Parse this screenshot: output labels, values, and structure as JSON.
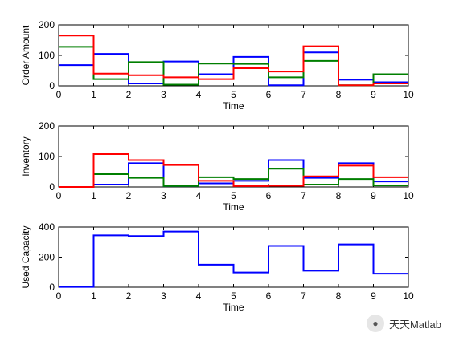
{
  "chart_data": [
    {
      "type": "line",
      "ylabel": "Order Amount",
      "xlabel": "Time",
      "xlim": [
        0,
        10
      ],
      "ylim": [
        0,
        200
      ],
      "xticks": [
        0,
        1,
        2,
        3,
        4,
        5,
        6,
        7,
        8,
        9,
        10
      ],
      "yticks": [
        0,
        100,
        200
      ],
      "step": true,
      "grid": false,
      "series": [
        {
          "color": "#0000ff",
          "values": [
            68,
            105,
            8,
            80,
            38,
            95,
            2,
            110,
            20,
            12
          ]
        },
        {
          "color": "#007f00",
          "values": [
            128,
            22,
            78,
            4,
            73,
            72,
            28,
            82,
            2,
            38
          ]
        },
        {
          "color": "#ff0000",
          "values": [
            165,
            40,
            35,
            28,
            22,
            58,
            47,
            130,
            2,
            8
          ]
        }
      ]
    },
    {
      "type": "line",
      "ylabel": "Inventory",
      "xlabel": "Time",
      "xlim": [
        0,
        10
      ],
      "ylim": [
        0,
        200
      ],
      "xticks": [
        0,
        1,
        2,
        3,
        4,
        5,
        6,
        7,
        8,
        9,
        10
      ],
      "yticks": [
        0,
        100,
        200
      ],
      "step": true,
      "grid": false,
      "series": [
        {
          "color": "#0000ff",
          "values": [
            0,
            8,
            78,
            3,
            12,
            20,
            88,
            30,
            78,
            18
          ]
        },
        {
          "color": "#007f00",
          "values": [
            0,
            42,
            30,
            3,
            32,
            26,
            60,
            8,
            26,
            5
          ]
        },
        {
          "color": "#ff0000",
          "values": [
            0,
            108,
            88,
            72,
            20,
            3,
            4,
            35,
            70,
            32
          ]
        }
      ]
    },
    {
      "type": "line",
      "ylabel": "Used Capacity",
      "xlabel": "Time",
      "xlim": [
        0,
        10
      ],
      "ylim": [
        0,
        400
      ],
      "xticks": [
        0,
        1,
        2,
        3,
        4,
        5,
        6,
        7,
        8,
        9,
        10
      ],
      "yticks": [
        0,
        200,
        400
      ],
      "step": true,
      "grid": false,
      "series": [
        {
          "color": "#0000ff",
          "values": [
            2,
            345,
            340,
            370,
            150,
            98,
            275,
            110,
            285,
            90
          ]
        }
      ]
    }
  ],
  "watermark": {
    "text": "天天Matlab",
    "icon": "wechat-icon"
  }
}
